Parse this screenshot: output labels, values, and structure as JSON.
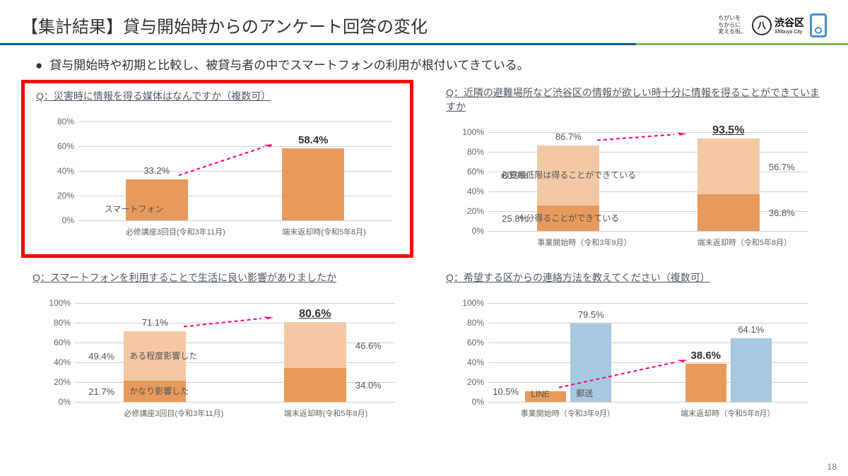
{
  "header": {
    "title": "【集計結果】貸与開始時からのアンケート回答の変化",
    "tagline1": "ちがいを",
    "tagline2": "ちからに",
    "tagline3": "変える街。",
    "city_jp": "渋谷区",
    "city_en": "Shibuya City",
    "logo_symbol": "八"
  },
  "bullet": "貸与開始時や初期と比較し、被貸与者の中でスマートフォンの利用が根付いてきている。",
  "page_number": "18",
  "colors": {
    "orange": "#e89a5c",
    "orange_light": "#f3c9a5",
    "blue": "#a8c8e0",
    "grid": "#d0d0d0",
    "highlight_border": "#ff0000",
    "arrow": "#ff0080"
  },
  "charts": {
    "c1": {
      "question": "Q：災害時に情報を得る媒体はなんですか（複数可）",
      "highlighted": true,
      "ymax": 80,
      "ytick": 20,
      "categories": [
        "必修講座3回目(令和3年11月)",
        "端末返却時(令和5年8月)"
      ],
      "bars": [
        {
          "v": 33.2,
          "label": "33.2%",
          "color": "#e89a5c",
          "inner": "スマートフォン"
        },
        {
          "v": 58.4,
          "label": "58.4%",
          "color": "#e89a5c",
          "bold": true
        }
      ]
    },
    "c2": {
      "question": "Q：近隣の避難場所など渋谷区の情報が欲しい時十分に情報を得ることができていますか",
      "ymax": 100,
      "ytick": 20,
      "categories": [
        "事業開始時（令和3年9月）",
        "端末返却時（令和5年8月）"
      ],
      "bars": [
        {
          "total": "86.7%",
          "segs": [
            {
              "v": 25.8,
              "label": "25.8%",
              "side": "left",
              "color": "#e89a5c",
              "inner": "十分得ることができている"
            },
            {
              "v": 60.9,
              "label": "60.9%",
              "side": "left",
              "color": "#f3c9a5",
              "inner": "必要最低限は得ることができている"
            }
          ]
        },
        {
          "total": "93.5%",
          "ubold": true,
          "segs": [
            {
              "v": 36.8,
              "label": "36.8%",
              "side": "right",
              "color": "#e89a5c"
            },
            {
              "v": 56.7,
              "label": "56.7%",
              "side": "right",
              "color": "#f3c9a5"
            }
          ]
        }
      ]
    },
    "c3": {
      "question": "Q：スマートフォンを利用することで生活に良い影響がありましたか",
      "ymax": 100,
      "ytick": 20,
      "categories": [
        "必修講座3回目(令和3年11月)",
        "端末返却時(令和5年8月)"
      ],
      "bars": [
        {
          "total": "71.1%",
          "segs": [
            {
              "v": 21.7,
              "label": "21.7%",
              "side": "left",
              "color": "#e89a5c",
              "inner": "かなり影響した"
            },
            {
              "v": 49.4,
              "label": "49.4%",
              "side": "left",
              "color": "#f3c9a5",
              "inner": "ある程度影響した"
            }
          ]
        },
        {
          "total": "80.6%",
          "ubold": true,
          "segs": [
            {
              "v": 34.0,
              "label": "34.0%",
              "side": "right",
              "color": "#e89a5c"
            },
            {
              "v": 46.6,
              "label": "46.6%",
              "side": "right",
              "color": "#f3c9a5"
            }
          ]
        }
      ]
    },
    "c4": {
      "question": "Q：希望する区からの連絡方法を教えてください（複数可）",
      "ymax": 100,
      "ytick": 20,
      "categories": [
        "事業開始時（令和3年9月）",
        "端末返却時（令和5年8月）"
      ],
      "groups": [
        {
          "bars": [
            {
              "v": 10.5,
              "label": "10.5%",
              "color": "#e89a5c",
              "inner": "LINE",
              "side": "left"
            },
            {
              "v": 79.5,
              "label": "79.5%",
              "color": "#a8c8e0",
              "inner": "郵送"
            }
          ]
        },
        {
          "bars": [
            {
              "v": 38.6,
              "label": "38.6%",
              "color": "#e89a5c",
              "bold": true
            },
            {
              "v": 64.1,
              "label": "64.1%",
              "color": "#a8c8e0"
            }
          ]
        }
      ]
    }
  }
}
